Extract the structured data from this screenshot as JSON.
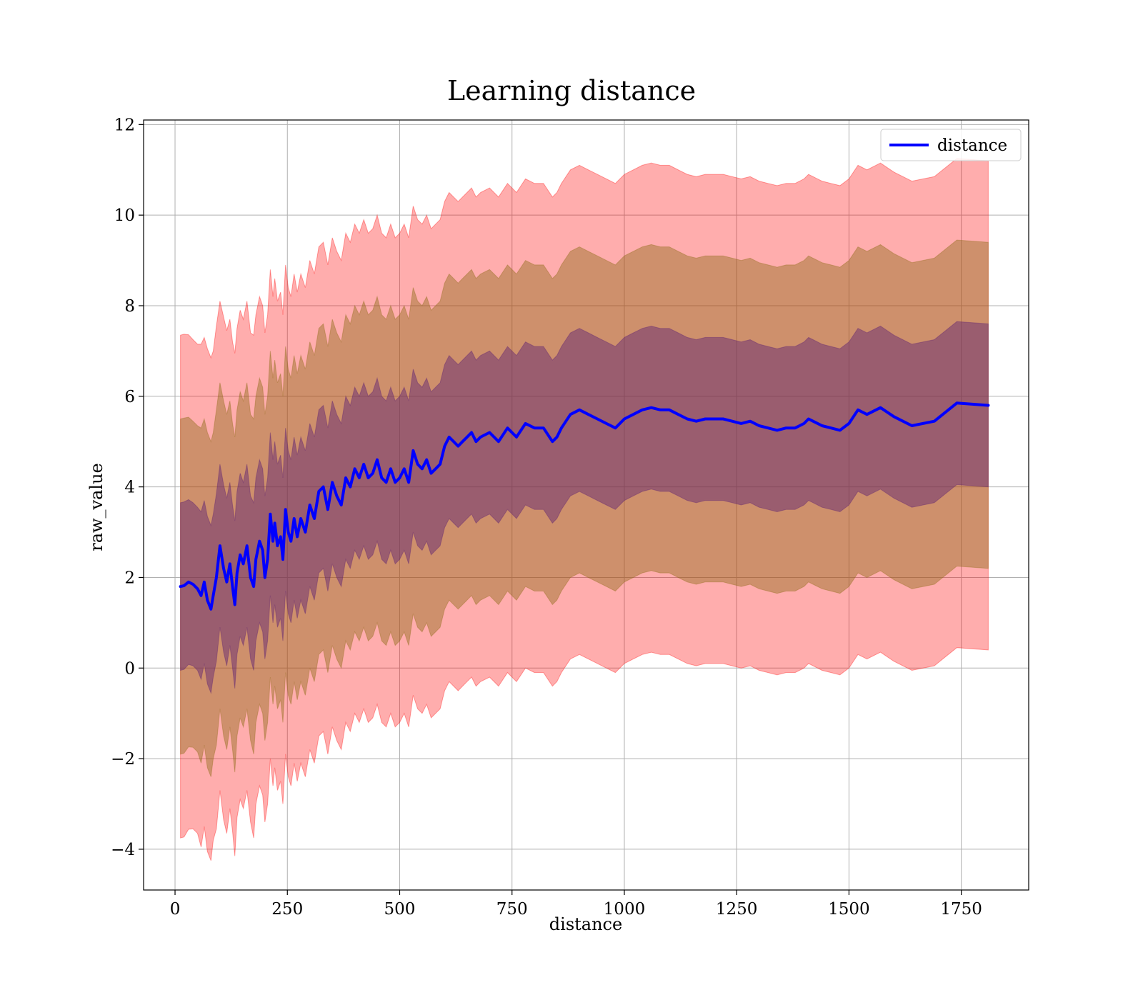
{
  "chart_data": {
    "type": "line",
    "title": "Learning distance",
    "xlabel": "distance",
    "ylabel": "raw_value",
    "xlim": [
      -70,
      1900
    ],
    "ylim": [
      -4.9,
      12.1
    ],
    "x_ticks": [
      0,
      250,
      500,
      750,
      1000,
      1250,
      1500,
      1750
    ],
    "y_ticks": [
      -4,
      -2,
      0,
      2,
      4,
      6,
      8,
      10,
      12
    ],
    "grid": true,
    "legend_position": "top-right",
    "colors": {
      "line": "#0000ff",
      "band": "#ff0000",
      "band2_overlay": "#8b6914",
      "band1_overlay": "#5a1e73"
    },
    "series": [
      {
        "name": "distance",
        "std_multiples": [
          1,
          2,
          3
        ],
        "x": [
          12,
          20,
          30,
          40,
          50,
          58,
          65,
          72,
          80,
          85,
          92,
          100,
          108,
          115,
          122,
          128,
          133,
          138,
          145,
          152,
          160,
          168,
          175,
          180,
          188,
          195,
          200,
          206,
          212,
          218,
          222,
          228,
          235,
          240,
          246,
          252,
          258,
          265,
          272,
          280,
          290,
          300,
          310,
          320,
          330,
          340,
          350,
          360,
          370,
          380,
          390,
          400,
          410,
          420,
          430,
          440,
          450,
          460,
          470,
          480,
          490,
          500,
          510,
          520,
          530,
          540,
          550,
          560,
          570,
          580,
          590,
          600,
          610,
          620,
          630,
          640,
          650,
          660,
          670,
          680,
          700,
          720,
          740,
          760,
          780,
          800,
          820,
          840,
          850,
          860,
          880,
          900,
          920,
          940,
          960,
          980,
          1000,
          1020,
          1040,
          1060,
          1080,
          1100,
          1120,
          1140,
          1160,
          1180,
          1200,
          1220,
          1240,
          1260,
          1280,
          1300,
          1320,
          1340,
          1360,
          1380,
          1400,
          1410,
          1420,
          1440,
          1460,
          1480,
          1500,
          1520,
          1540,
          1570,
          1600,
          1640,
          1690,
          1740,
          1810
        ],
        "mean": [
          1.8,
          1.82,
          1.9,
          1.85,
          1.75,
          1.6,
          1.9,
          1.5,
          1.3,
          1.6,
          2.0,
          2.7,
          2.2,
          1.9,
          2.3,
          1.8,
          1.4,
          2.1,
          2.5,
          2.3,
          2.7,
          2.0,
          1.8,
          2.4,
          2.8,
          2.6,
          2.0,
          2.4,
          3.4,
          2.8,
          3.2,
          2.7,
          2.9,
          2.4,
          3.5,
          3.0,
          2.8,
          3.3,
          2.9,
          3.3,
          3.0,
          3.6,
          3.3,
          3.9,
          4.0,
          3.5,
          4.1,
          3.8,
          3.6,
          4.2,
          4.0,
          4.4,
          4.2,
          4.5,
          4.2,
          4.3,
          4.6,
          4.2,
          4.1,
          4.4,
          4.1,
          4.2,
          4.4,
          4.1,
          4.8,
          4.5,
          4.4,
          4.6,
          4.3,
          4.4,
          4.5,
          4.9,
          5.1,
          5.0,
          4.9,
          5.0,
          5.1,
          5.2,
          5.0,
          5.1,
          5.2,
          5.0,
          5.3,
          5.1,
          5.4,
          5.3,
          5.3,
          5.0,
          5.1,
          5.3,
          5.6,
          5.7,
          5.6,
          5.5,
          5.4,
          5.3,
          5.5,
          5.6,
          5.7,
          5.75,
          5.7,
          5.7,
          5.6,
          5.5,
          5.45,
          5.5,
          5.5,
          5.5,
          5.45,
          5.4,
          5.45,
          5.35,
          5.3,
          5.25,
          5.3,
          5.3,
          5.4,
          5.5,
          5.45,
          5.35,
          5.3,
          5.25,
          5.4,
          5.7,
          5.6,
          5.75,
          5.55,
          5.35,
          5.45,
          5.85,
          5.8
        ],
        "std": [
          1.85,
          1.85,
          1.82,
          1.8,
          1.8,
          1.85,
          1.8,
          1.85,
          1.85,
          1.8,
          1.85,
          1.8,
          1.85,
          1.85,
          1.8,
          1.8,
          1.85,
          1.8,
          1.8,
          1.8,
          1.8,
          1.8,
          1.85,
          1.8,
          1.8,
          1.8,
          1.8,
          1.8,
          1.8,
          1.8,
          1.8,
          1.8,
          1.8,
          1.8,
          1.8,
          1.8,
          1.8,
          1.8,
          1.8,
          1.8,
          1.8,
          1.8,
          1.8,
          1.8,
          1.8,
          1.8,
          1.8,
          1.8,
          1.8,
          1.8,
          1.8,
          1.8,
          1.8,
          1.8,
          1.8,
          1.8,
          1.8,
          1.8,
          1.8,
          1.8,
          1.8,
          1.8,
          1.8,
          1.8,
          1.8,
          1.8,
          1.8,
          1.8,
          1.8,
          1.8,
          1.8,
          1.8,
          1.8,
          1.8,
          1.8,
          1.8,
          1.8,
          1.8,
          1.8,
          1.8,
          1.8,
          1.8,
          1.8,
          1.8,
          1.8,
          1.8,
          1.8,
          1.8,
          1.8,
          1.8,
          1.8,
          1.8,
          1.8,
          1.8,
          1.8,
          1.8,
          1.8,
          1.8,
          1.8,
          1.8,
          1.8,
          1.8,
          1.8,
          1.8,
          1.8,
          1.8,
          1.8,
          1.8,
          1.8,
          1.8,
          1.8,
          1.8,
          1.8,
          1.8,
          1.8,
          1.8,
          1.8,
          1.8,
          1.8,
          1.8,
          1.8,
          1.8,
          1.8,
          1.8,
          1.8,
          1.8,
          1.8,
          1.8,
          1.8,
          1.8,
          1.8
        ]
      }
    ]
  }
}
